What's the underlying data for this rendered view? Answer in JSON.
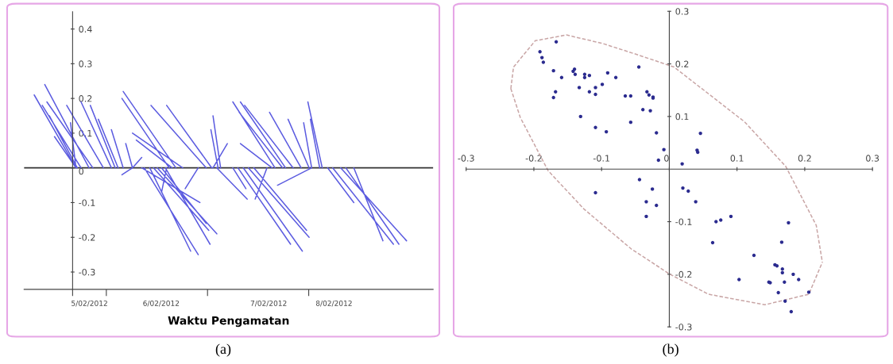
{
  "chart_data": [
    {
      "type": "line",
      "xlabel": "Waktu Pengamatan",
      "annotations": [
        "(a)"
      ],
      "series": [
        {
          "color": "#5c5ce0",
          "x": [
            "2012-02-05T16:48",
            "2012-02-05T06:54",
            null,
            "2012-02-05T19:54",
            "2012-02-05T09:24",
            null,
            "2012-02-05T18:00",
            "2012-02-05T08:48",
            null,
            "2012-02-05T20:48",
            "2012-02-05T09:54",
            null,
            "2012-02-05T17:06",
            "2012-02-05T10:30",
            null,
            "2012-02-05T16:48",
            "2012-02-05T11:42",
            null,
            "2012-02-05T23:18",
            "2012-02-05T14:36",
            null,
            "2012-02-05T16:48",
            "2012-02-05T15:30",
            null,
            "2012-02-06T01:12",
            "2012-02-05T18:00",
            null,
            "2012-02-06T02:06",
            "2012-02-05T20:12",
            null,
            "2012-02-06T02:48",
            "2012-02-05T22:06",
            null,
            "2012-02-06T04:00",
            "2012-02-06T01:12",
            null,
            "2012-02-06T06:12",
            "2012-02-06T04:36",
            null,
            "2012-02-06T06:12",
            "2012-02-06T03:42",
            null,
            "2012-02-06T06:12",
            "2012-02-06T08:24",
            null,
            "2012-02-06T08:24",
            "2012-02-06T22:12",
            null,
            "2012-02-06T09:00",
            "2012-02-06T21:48",
            null,
            "2012-02-06T10:18",
            "2012-02-06T20:00",
            null,
            "2012-02-06T11:12",
            "2012-02-07T00:18",
            null,
            "2012-02-06T12:06",
            "2012-02-07T02:12",
            null,
            "2012-02-06T13:06",
            "2012-02-06T23:42",
            null,
            "2012-02-06T14:00",
            "2012-02-07T00:36",
            null,
            "2012-02-06T14:18",
            "2012-02-06T13:06",
            null,
            "2012-02-06T14:54",
            "2012-02-06T03:42",
            null,
            "2012-02-06T15:36",
            "2012-02-06T07:06",
            null,
            "2012-02-06T16:30",
            "2012-02-06T04:00",
            null,
            "2012-02-06T18:06",
            "2012-02-06T06:12",
            null,
            "2012-02-06T21:48",
            "2012-02-06T18:42",
            null,
            "2012-02-06T23:42",
            "2012-02-06T10:36",
            null,
            "2012-02-07T01:00",
            "2012-02-06T14:18",
            null,
            "2012-02-07T01:18",
            "2012-02-07T04:42",
            null,
            "2012-02-07T02:12",
            "2012-02-07T09:24",
            null,
            "2012-02-07T02:30",
            "2012-02-07T00:48",
            null,
            "2012-02-07T03:06",
            "2012-02-07T01:18",
            null,
            "2012-02-07T06:00",
            "2012-02-07T09:06",
            null,
            "2012-02-07T07:12",
            "2012-02-07T19:42",
            null,
            "2012-02-07T08:30",
            "2012-02-07T22:30",
            null,
            "2012-02-07T09:42",
            "2012-02-08T00:06",
            null,
            "2012-02-07T11:00",
            "2012-02-07T23:30",
            null,
            "2012-02-07T14:06",
            "2012-02-07T11:18",
            null,
            "2012-02-07T15:18",
            "2012-02-07T07:48",
            null,
            "2012-02-07T16:00",
            "2012-02-07T06:00",
            null,
            "2012-02-07T17:48",
            "2012-02-07T07:30",
            null,
            "2012-02-07T18:30",
            "2012-02-07T07:48",
            null,
            "2012-02-07T20:18",
            "2012-02-07T08:48",
            null,
            "2012-02-07T22:12",
            "2012-02-07T14:42",
            null,
            "2012-02-08T00:06",
            "2012-02-07T19:06",
            null,
            "2012-02-08T00:42",
            "2012-02-07T22:48",
            null,
            "2012-02-08T00:42",
            "2012-02-07T16:36",
            null,
            "2012-02-08T02:36",
            "2012-02-08T00:24",
            null,
            "2012-02-08T03:12",
            "2012-02-07T23:48",
            null,
            "2012-02-08T04:30",
            "2012-02-08T10:42",
            null,
            "2012-02-08T05:42",
            "2012-02-08T20:06",
            null,
            "2012-02-08T07:36",
            "2012-02-08T23:12",
            null,
            "2012-02-08T08:48",
            "2012-02-08T21:24",
            null,
            "2012-02-08T10:42",
            "2012-02-08T17:36"
          ],
          "values": [
            0,
            0.21,
            null,
            0,
            0.24,
            null,
            0,
            0.18,
            null,
            0,
            0.19,
            null,
            0,
            0.15,
            null,
            0,
            0.09,
            null,
            0,
            0.18,
            null,
            0,
            0.13,
            null,
            0,
            0.19,
            null,
            0,
            0.18,
            null,
            0,
            0.14,
            null,
            0,
            0.11,
            null,
            0,
            0.07,
            null,
            0,
            -0.02,
            null,
            0,
            0.03,
            null,
            0,
            -0.1,
            null,
            0,
            -0.25,
            null,
            0,
            -0.24,
            null,
            0,
            -0.18,
            null,
            0,
            -0.19,
            null,
            0,
            -0.16,
            null,
            0,
            -0.22,
            null,
            0,
            -0.07,
            null,
            0,
            0.2,
            null,
            0,
            0.08,
            null,
            0,
            0.22,
            null,
            0,
            0.1,
            null,
            0,
            -0.06,
            null,
            0,
            0.18,
            null,
            0,
            0.18,
            null,
            0,
            0.07,
            null,
            0,
            -0.09,
            null,
            0,
            0.11,
            null,
            0,
            0.15,
            null,
            0,
            -0.06,
            null,
            0,
            -0.22,
            null,
            0,
            -0.24,
            null,
            0,
            -0.2,
            null,
            0,
            -0.18,
            null,
            0,
            -0.09,
            null,
            0,
            0.07,
            null,
            0,
            0.19,
            null,
            0,
            0.16,
            null,
            0,
            0.19,
            null,
            0,
            0.18,
            null,
            0,
            0.16,
            null,
            0,
            0.14,
            null,
            0,
            0.13,
            null,
            0,
            -0.05,
            null,
            0,
            0.14,
            null,
            0,
            0.19,
            null,
            0,
            -0.1,
            null,
            0,
            -0.22,
            null,
            0,
            -0.21,
            null,
            0,
            -0.22,
            null,
            0,
            -0.21
          ]
        }
      ],
      "xlim": [
        "2012-02-05T04:30",
        "2012-02-09T05:30"
      ],
      "ylim": [
        -0.35,
        0.45
      ],
      "xticks": [
        {
          "value": "2012-02-05T16:00",
          "label": null
        },
        {
          "value": "2012-02-05T20:00",
          "label": "5/02/2012"
        },
        {
          "value": "2012-02-06T00:00",
          "label": null
        },
        {
          "value": "2012-02-06T13:00",
          "label": "6/02/2012"
        },
        {
          "value": "2012-02-07T00:00",
          "label": null
        },
        {
          "value": "2012-02-07T14:30",
          "label": "7/02/2012"
        },
        {
          "value": "2012-02-08T00:00",
          "label": null
        },
        {
          "value": "2012-02-08T06:00",
          "label": "8/02/2012"
        }
      ],
      "yticks": [
        -0.3,
        -0.2,
        -0.1,
        0,
        0.1,
        0.2,
        0.3,
        0.4
      ],
      "ref_lines": [
        {
          "axis": "y",
          "value": 0,
          "color": "#333333"
        }
      ]
    },
    {
      "type": "scatter",
      "annotations": [
        "(b)"
      ],
      "series": [
        {
          "type": "scatter",
          "marker": "circle",
          "color": "#2b2b8f",
          "x": [
            -0.167,
            -0.191,
            -0.188,
            -0.186,
            -0.171,
            -0.159,
            -0.168,
            -0.171,
            -0.142,
            -0.14,
            -0.139,
            -0.125,
            -0.125,
            -0.118,
            -0.133,
            -0.118,
            -0.109,
            -0.109,
            -0.099,
            -0.091,
            -0.079,
            -0.045,
            -0.065,
            -0.057,
            -0.033,
            -0.03,
            -0.024,
            -0.024,
            -0.039,
            -0.028,
            -0.131,
            -0.057,
            -0.109,
            -0.093,
            -0.019,
            -0.008,
            -0.016,
            -0.044,
            -0.025,
            -0.109,
            -0.034,
            -0.019,
            -0.034,
            0.046,
            0.041,
            0.042,
            0.019,
            0.02,
            0.028,
            0.039,
            0.069,
            0.076,
            0.091,
            0.064,
            0.176,
            0.125,
            0.166,
            0.156,
            0.159,
            0.167,
            0.167,
            0.183,
            0.103,
            0.191,
            0.147,
            0.149,
            0.17,
            0.161,
            0.206,
            0.171,
            0.18
          ],
          "values": [
            0.242,
            0.223,
            0.212,
            0.203,
            0.187,
            0.174,
            0.147,
            0.136,
            0.186,
            0.19,
            0.18,
            0.18,
            0.174,
            0.178,
            0.155,
            0.147,
            0.155,
            0.142,
            0.161,
            0.183,
            0.174,
            0.194,
            0.139,
            0.139,
            0.147,
            0.141,
            0.137,
            0.135,
            0.113,
            0.111,
            0.1,
            0.089,
            0.079,
            0.071,
            0.069,
            0.037,
            0.017,
            -0.02,
            -0.038,
            -0.045,
            -0.062,
            -0.069,
            -0.09,
            0.068,
            0.036,
            0.032,
            0.01,
            -0.036,
            -0.042,
            -0.062,
            -0.1,
            -0.097,
            -0.09,
            -0.14,
            -0.102,
            -0.164,
            -0.139,
            -0.182,
            -0.184,
            -0.19,
            -0.197,
            -0.2,
            -0.21,
            -0.21,
            -0.215,
            -0.216,
            -0.215,
            -0.235,
            -0.234,
            -0.251,
            -0.271
          ]
        },
        {
          "type": "line",
          "line_style": "dashed",
          "color": "#c9a6a6",
          "x": [
            -0.234,
            -0.23,
            -0.198,
            -0.152,
            -0.099,
            -0.046,
            0.007,
            0.111,
            0.172,
            0.217,
            0.226,
            null,
            -0.234,
            -0.22,
            -0.179,
            -0.126,
            -0.056,
            0.001,
            0.058,
            0.141,
            0.206,
            0.226
          ],
          "values": [
            0.153,
            0.194,
            0.244,
            0.255,
            0.239,
            0.217,
            0.194,
            0.09,
            0.005,
            -0.107,
            -0.177,
            null,
            0.153,
            0.098,
            -0.003,
            -0.076,
            -0.152,
            -0.2,
            -0.238,
            -0.258,
            -0.238,
            -0.177
          ]
        }
      ],
      "xlim": [
        -0.3,
        0.3
      ],
      "ylim": [
        -0.3,
        0.3
      ],
      "xticks": [
        -0.3,
        -0.2,
        -0.1,
        0,
        0.1,
        0.2,
        0.3
      ],
      "yticks": [
        -0.3,
        -0.2,
        -0.1,
        0.1,
        0.2,
        0.3
      ]
    }
  ]
}
